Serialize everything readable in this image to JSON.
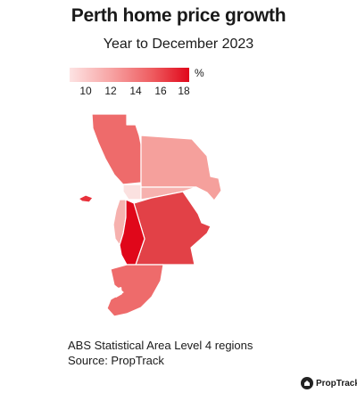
{
  "title": "Perth home price growth",
  "subtitle": "Year to December 2023",
  "legend": {
    "unit": "%",
    "ticks": [
      "10",
      "12",
      "14",
      "16",
      "18"
    ],
    "tick_values": [
      10,
      12,
      14,
      16,
      18
    ],
    "min": 9,
    "max": 18.5,
    "colors": {
      "low": "#fde3e3",
      "mid": "#ee5a5e",
      "high": "#e0071a"
    }
  },
  "regions": [
    {
      "id": "wanneroo-north-coast",
      "color": "#ee6b6b"
    },
    {
      "id": "north-east-swan",
      "color": "#f5a09c"
    },
    {
      "id": "inner-north",
      "color": "#fbe1e0"
    },
    {
      "id": "inner-city",
      "color": "#f6b1ae"
    },
    {
      "id": "rottnest-island",
      "color": "#e8313b"
    },
    {
      "id": "western-coastal",
      "color": "#f6b1ae"
    },
    {
      "id": "south-east",
      "color": "#e24147"
    },
    {
      "id": "fremantle-cockburn",
      "color": "#e0071a"
    },
    {
      "id": "mandurah",
      "color": "#ee6b6b"
    }
  ],
  "notes": {
    "line1": "ABS Statistical Area Level 4 regions",
    "line2": "Source: PropTrack"
  },
  "brand": "PropTrack"
}
